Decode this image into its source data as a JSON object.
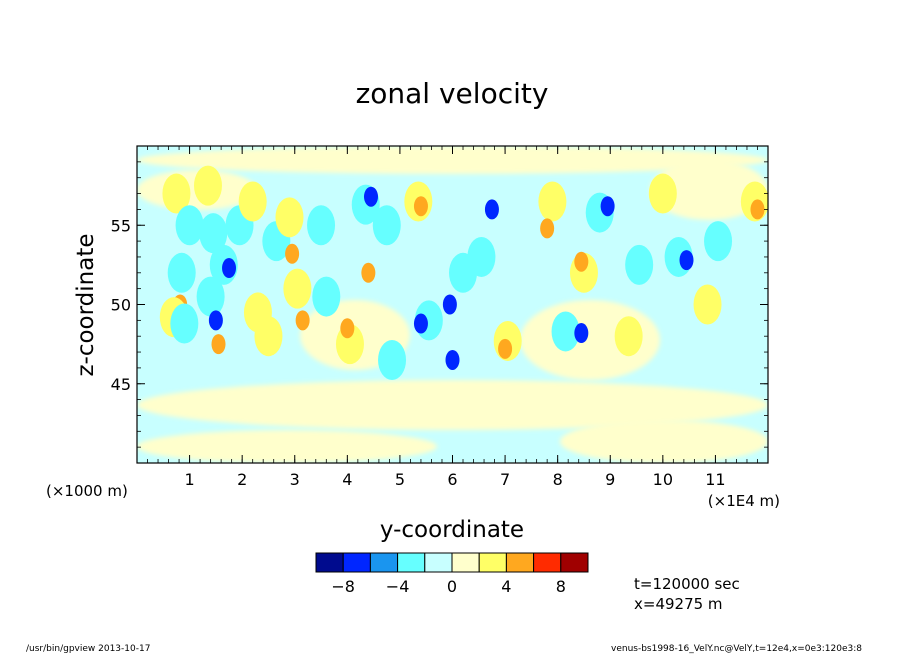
{
  "chart_data": {
    "type": "heatmap",
    "title": "zonal velocity",
    "xlabel": "y-coordinate",
    "ylabel": "z-coordinate",
    "x_unit_label": "(×1E4 m)",
    "y_unit_label": "(×1000 m)",
    "xlim": [
      0,
      12
    ],
    "ylim": [
      40,
      60
    ],
    "x_ticks": [
      1,
      2,
      3,
      4,
      5,
      6,
      7,
      8,
      9,
      10,
      11
    ],
    "y_ticks": [
      45,
      50,
      55
    ],
    "colorbar": {
      "levels": [
        -10,
        -8,
        -6,
        -4,
        -2,
        0,
        2,
        4,
        6,
        8,
        10
      ],
      "colors": [
        "#000b8e",
        "#0026ff",
        "#1a95ef",
        "#66ffff",
        "#c8ffff",
        "#ffffcc",
        "#ffff66",
        "#ffa81f",
        "#ff2b00",
        "#a00000"
      ],
      "tick_labels": [
        "-8",
        "-4",
        "0",
        "4",
        "8"
      ],
      "tick_values": [
        -8,
        -4,
        0,
        4,
        8
      ]
    },
    "features": [
      {
        "y": 0.82,
        "z": 50.0,
        "value": 4.5
      },
      {
        "y": 0.75,
        "z": 57.0,
        "value": 2.5
      },
      {
        "y": 0.7,
        "z": 49.2,
        "value": 2.5
      },
      {
        "y": 0.9,
        "z": 48.8,
        "value": -2.5
      },
      {
        "y": 0.85,
        "z": 52.0,
        "value": -2.5
      },
      {
        "y": 1.0,
        "z": 55.0,
        "value": -2.5
      },
      {
        "y": 1.35,
        "z": 57.5,
        "value": 2.5
      },
      {
        "y": 1.45,
        "z": 54.5,
        "value": -2.5
      },
      {
        "y": 1.55,
        "z": 47.5,
        "value": 4.5
      },
      {
        "y": 1.4,
        "z": 50.5,
        "value": -3.0
      },
      {
        "y": 1.5,
        "z": 49.0,
        "value": -6.5
      },
      {
        "y": 1.65,
        "z": 52.5,
        "value": -3.5
      },
      {
        "y": 1.75,
        "z": 52.3,
        "value": -6.5
      },
      {
        "y": 1.95,
        "z": 55.0,
        "value": -2.5
      },
      {
        "y": 2.2,
        "z": 56.5,
        "value": 2.5
      },
      {
        "y": 2.3,
        "z": 49.5,
        "value": 2.5
      },
      {
        "y": 2.5,
        "z": 48.0,
        "value": 2.5
      },
      {
        "y": 2.65,
        "z": 54.0,
        "value": -2.5
      },
      {
        "y": 2.9,
        "z": 55.5,
        "value": 2.5
      },
      {
        "y": 2.95,
        "z": 53.2,
        "value": 4.5
      },
      {
        "y": 3.05,
        "z": 51.0,
        "value": 2.5
      },
      {
        "y": 3.15,
        "z": 49.0,
        "value": 4.5
      },
      {
        "y": 3.6,
        "z": 50.5,
        "value": -2.5
      },
      {
        "y": 3.5,
        "z": 55.0,
        "value": -2.5
      },
      {
        "y": 4.05,
        "z": 47.5,
        "value": 2.5
      },
      {
        "y": 4.0,
        "z": 48.5,
        "value": 4.5
      },
      {
        "y": 4.4,
        "z": 52.0,
        "value": 4.5
      },
      {
        "y": 4.35,
        "z": 56.3,
        "value": -3.5
      },
      {
        "y": 4.45,
        "z": 56.8,
        "value": -6.5
      },
      {
        "y": 4.75,
        "z": 55.0,
        "value": -2.5
      },
      {
        "y": 5.35,
        "z": 56.5,
        "value": 2.5
      },
      {
        "y": 5.4,
        "z": 56.2,
        "value": 4.5
      },
      {
        "y": 4.85,
        "z": 46.5,
        "value": -2.5
      },
      {
        "y": 5.55,
        "z": 49.0,
        "value": -3.5
      },
      {
        "y": 5.4,
        "z": 48.8,
        "value": -6.5
      },
      {
        "y": 5.95,
        "z": 50.0,
        "value": -6.5
      },
      {
        "y": 6.0,
        "z": 46.5,
        "value": -6.5
      },
      {
        "y": 6.2,
        "z": 52.0,
        "value": -2.5
      },
      {
        "y": 6.55,
        "z": 53.0,
        "value": -2.5
      },
      {
        "y": 6.75,
        "z": 56.0,
        "value": -6.5
      },
      {
        "y": 7.05,
        "z": 47.7,
        "value": 2.5
      },
      {
        "y": 7.0,
        "z": 47.2,
        "value": 4.5
      },
      {
        "y": 7.9,
        "z": 56.5,
        "value": 2.5
      },
      {
        "y": 7.8,
        "z": 54.8,
        "value": 4.5
      },
      {
        "y": 8.15,
        "z": 48.3,
        "value": -2.5
      },
      {
        "y": 8.45,
        "z": 48.2,
        "value": -6.5
      },
      {
        "y": 8.5,
        "z": 52.0,
        "value": 2.5
      },
      {
        "y": 8.45,
        "z": 52.7,
        "value": 4.5
      },
      {
        "y": 8.8,
        "z": 55.8,
        "value": -3.5
      },
      {
        "y": 8.95,
        "z": 56.2,
        "value": -6.5
      },
      {
        "y": 9.35,
        "z": 48.0,
        "value": 2.5
      },
      {
        "y": 9.55,
        "z": 52.5,
        "value": -2.5
      },
      {
        "y": 10.0,
        "z": 57.0,
        "value": 2.5
      },
      {
        "y": 10.3,
        "z": 53.0,
        "value": -2.5
      },
      {
        "y": 10.45,
        "z": 52.8,
        "value": -6.5
      },
      {
        "y": 10.85,
        "z": 50.0,
        "value": 2.5
      },
      {
        "y": 11.05,
        "z": 54.0,
        "value": -2.5
      },
      {
        "y": 11.75,
        "z": 56.5,
        "value": 2.5
      },
      {
        "y": 11.8,
        "z": 56.0,
        "value": 4.5
      }
    ]
  },
  "info": {
    "time_label": "t=120000 sec",
    "position_label": "x=49275 m"
  },
  "footer": {
    "left": "/usr/bin/gpview  2013-10-17",
    "right": "venus-bs1998-16_VelY.nc@VelY,t=12e4,x=0e3:120e3:8"
  }
}
